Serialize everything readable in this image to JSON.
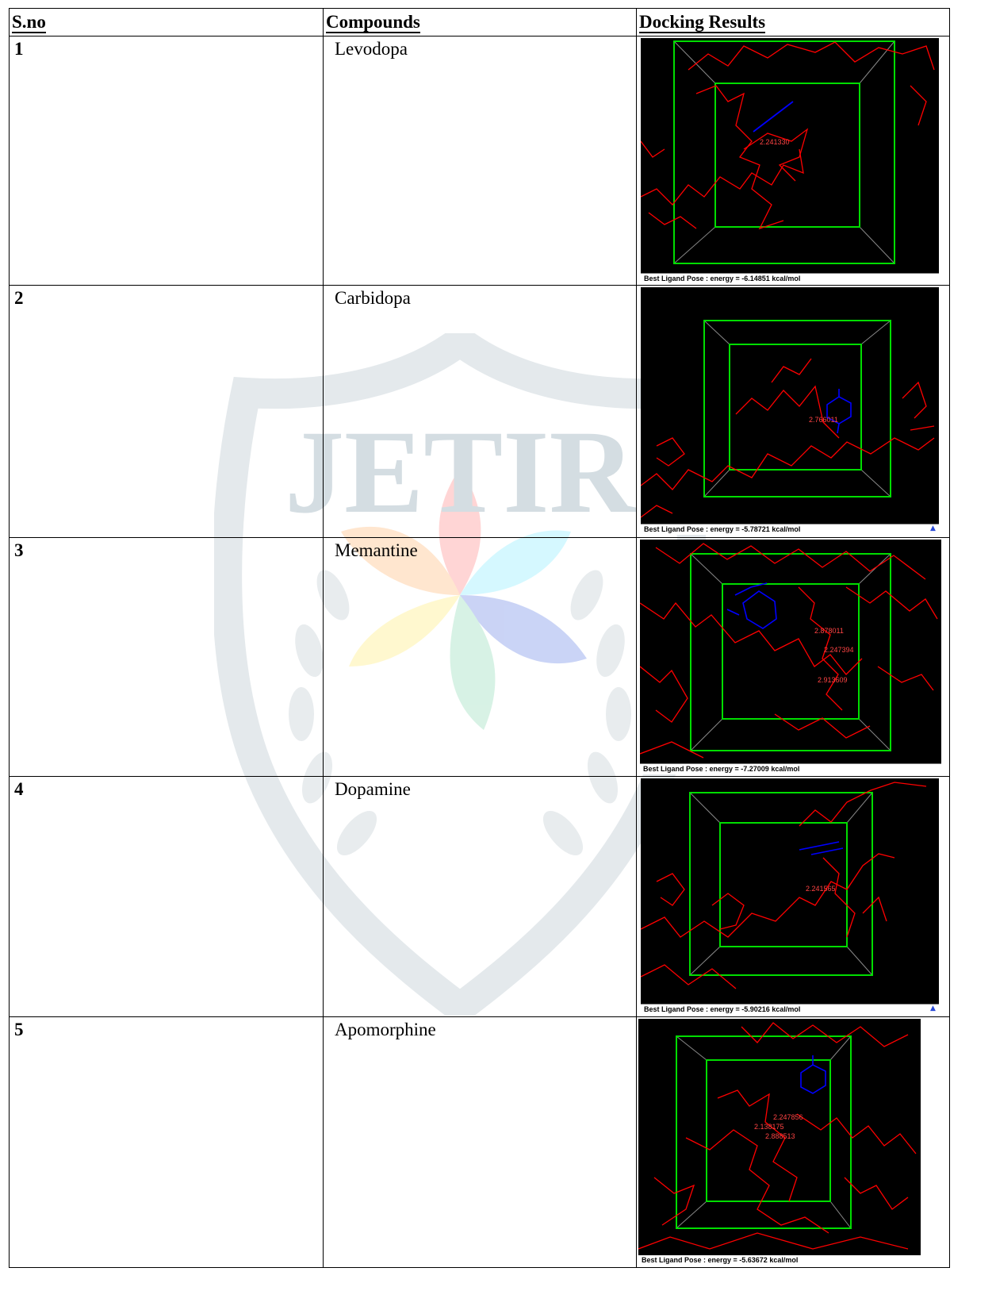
{
  "table": {
    "headers": {
      "sno": "S.no",
      "compounds": "Compounds",
      "docking": "Docking Results"
    },
    "rows": [
      {
        "sno": "1",
        "compound": "Levodopa",
        "energy": "Best Ligand Pose : energy = -6.14851 kcal/mol",
        "labels": [
          "2.241330"
        ]
      },
      {
        "sno": "2",
        "compound": "Carbidopa",
        "energy": "Best Ligand Pose : energy = -5.78721 kcal/mol",
        "labels": [
          "2.766011"
        ]
      },
      {
        "sno": "3",
        "compound": "Memantine",
        "energy": "Best Ligand Pose : energy = -7.27009 kcal/mol",
        "labels": [
          "2.878011",
          "2.247394",
          "2.913609"
        ]
      },
      {
        "sno": "4",
        "compound": "Dopamine",
        "energy": "Best Ligand Pose : energy = -5.90216 kcal/mol",
        "labels": [
          "2.241565"
        ]
      },
      {
        "sno": "5",
        "compound": "Apomorphine",
        "energy": "Best Ligand Pose : energy = -5.63672 kcal/mol",
        "labels": [
          "2.247856",
          "2.138175",
          "2.888513"
        ]
      }
    ]
  },
  "watermark": {
    "text": "JETIR"
  },
  "colors": {
    "protein": "#ff0000",
    "ligand": "#0000ff",
    "gridbox": "#00dd00",
    "background": "#000000"
  }
}
